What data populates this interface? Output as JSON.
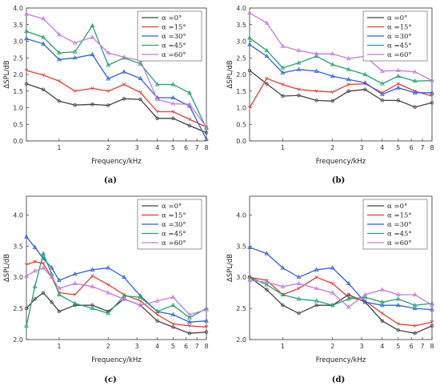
{
  "chart_data": [
    {
      "type": "line",
      "caption": "(a)",
      "xlabel": "Frequency/kHz",
      "ylabel": "ΔSPL/dB",
      "xscale": "log",
      "xlim": [
        0.63,
        8
      ],
      "ylim": [
        0,
        4
      ],
      "xticks": [
        1,
        2,
        3,
        4,
        5,
        6,
        7,
        8
      ],
      "yticks": [
        0.0,
        0.5,
        1.0,
        1.5,
        2.0,
        2.5,
        3.0,
        3.5,
        4.0
      ],
      "ytick_labels": [
        "0.0",
        "0.5",
        "1.0",
        "1.5",
        "2.0",
        "2.5",
        "3.0",
        "3.5",
        "4.0"
      ],
      "legend_position": "top-right",
      "x": [
        0.63,
        0.8,
        1.0,
        1.25,
        1.6,
        2.0,
        2.5,
        3.15,
        4.0,
        5.0,
        6.3,
        8.0
      ],
      "series": [
        {
          "name": "α =0°",
          "color": "#444444",
          "values": [
            1.72,
            1.55,
            1.2,
            1.08,
            1.1,
            1.07,
            1.27,
            1.25,
            0.68,
            0.68,
            0.46,
            0.25
          ]
        },
        {
          "name": "α =15°",
          "color": "#e83a35",
          "values": [
            2.12,
            1.98,
            1.8,
            1.5,
            1.58,
            1.5,
            1.7,
            1.46,
            0.88,
            0.88,
            0.65,
            0.42
          ]
        },
        {
          "name": "α =30°",
          "color": "#2f61d9",
          "values": [
            3.08,
            2.92,
            2.45,
            2.5,
            2.6,
            1.87,
            2.08,
            1.88,
            1.3,
            1.3,
            1.05,
            0.05
          ]
        },
        {
          "name": "α =45°",
          "color": "#1fa472",
          "values": [
            3.3,
            3.12,
            2.65,
            2.68,
            3.47,
            2.28,
            2.5,
            2.32,
            1.7,
            1.7,
            1.45,
            0.38
          ]
        },
        {
          "name": "α =60°",
          "color": "#c27be0",
          "values": [
            3.82,
            3.68,
            3.2,
            2.95,
            3.12,
            2.65,
            2.52,
            2.42,
            1.25,
            1.12,
            1.1,
            0.42
          ]
        }
      ]
    },
    {
      "type": "line",
      "caption": "(b)",
      "xlabel": "Frequency/kHz",
      "ylabel": "ΔSPL/dB",
      "xscale": "log",
      "xlim": [
        0.63,
        8
      ],
      "ylim": [
        0,
        4
      ],
      "xticks": [
        1,
        2,
        3,
        4,
        5,
        6,
        7,
        8
      ],
      "yticks": [
        0.0,
        0.5,
        1.0,
        1.5,
        2.0,
        2.5,
        3.0,
        3.5,
        4.0
      ],
      "ytick_labels": [
        "0.0",
        "0.5",
        "1.0",
        "1.5",
        "2.0",
        "2.5",
        "3.0",
        "3.5",
        "4.0"
      ],
      "legend_position": "top-right",
      "x": [
        0.63,
        0.8,
        1.0,
        1.25,
        1.6,
        2.0,
        2.5,
        3.15,
        4.0,
        5.0,
        6.3,
        8.0
      ],
      "series": [
        {
          "name": "α =0°",
          "color": "#444444",
          "values": [
            2.12,
            1.72,
            1.35,
            1.37,
            1.22,
            1.2,
            1.5,
            1.55,
            1.22,
            1.22,
            1.02,
            1.15
          ]
        },
        {
          "name": "α =15°",
          "color": "#e83a35",
          "values": [
            1.0,
            1.88,
            1.7,
            1.55,
            1.5,
            1.47,
            1.7,
            1.72,
            1.45,
            1.72,
            1.5,
            1.35
          ]
        },
        {
          "name": "α =30°",
          "color": "#2f61d9",
          "values": [
            2.9,
            2.55,
            2.05,
            2.15,
            2.1,
            1.95,
            1.85,
            1.75,
            1.4,
            1.6,
            1.45,
            1.45
          ]
        },
        {
          "name": "α =45°",
          "color": "#1fa472",
          "values": [
            3.1,
            2.72,
            2.2,
            2.35,
            2.55,
            2.3,
            2.15,
            2.0,
            1.72,
            1.95,
            1.8,
            1.82
          ]
        },
        {
          "name": "α =60°",
          "color": "#c27be0",
          "values": [
            3.85,
            3.55,
            2.85,
            2.72,
            2.62,
            2.62,
            2.48,
            2.55,
            2.1,
            2.12,
            2.08,
            1.82
          ]
        }
      ]
    },
    {
      "type": "line",
      "caption": "(c)",
      "xlabel": "Frequency/kHz",
      "ylabel": "ΔSPL/dB",
      "xscale": "log",
      "xlim": [
        0.63,
        8
      ],
      "ylim": [
        2.0,
        4.3
      ],
      "xticks": [
        1,
        2,
        3,
        4,
        5,
        6,
        7,
        8
      ],
      "yticks": [
        2.0,
        2.5,
        3.0,
        3.5,
        4.0
      ],
      "ytick_labels": [
        "2.0",
        "2.5",
        "3.0",
        "3.5",
        "4.0"
      ],
      "legend_position": "top-right",
      "x": [
        0.63,
        0.71,
        0.8,
        0.9,
        1.0,
        1.25,
        1.6,
        2.0,
        2.5,
        3.15,
        4.0,
        5.0,
        6.3,
        8.0
      ],
      "series": [
        {
          "name": "α =0°",
          "color": "#444444",
          "values": [
            2.5,
            2.65,
            2.75,
            2.6,
            2.45,
            2.55,
            2.55,
            2.45,
            2.65,
            2.55,
            2.3,
            2.2,
            2.1,
            2.12
          ]
        },
        {
          "name": "α =15°",
          "color": "#e83a35",
          "values": [
            3.2,
            3.25,
            3.22,
            3.0,
            2.75,
            2.72,
            3.02,
            2.88,
            2.72,
            2.62,
            2.4,
            2.25,
            2.22,
            2.2
          ]
        },
        {
          "name": "α =30°",
          "color": "#2f61d9",
          "values": [
            3.65,
            3.48,
            3.3,
            3.15,
            2.95,
            3.05,
            3.12,
            3.15,
            3.0,
            2.7,
            2.45,
            2.4,
            2.28,
            2.3
          ]
        },
        {
          "name": "α =45°",
          "color": "#1fa472",
          "values": [
            2.22,
            2.85,
            3.38,
            3.05,
            2.72,
            2.58,
            2.5,
            2.42,
            2.7,
            2.68,
            2.45,
            2.55,
            2.35,
            2.5
          ]
        },
        {
          "name": "α =60°",
          "color": "#c27be0",
          "values": [
            3.02,
            3.1,
            3.15,
            3.0,
            2.82,
            2.9,
            2.85,
            2.75,
            2.65,
            2.55,
            2.62,
            2.68,
            2.4,
            2.48
          ]
        }
      ]
    },
    {
      "type": "line",
      "caption": "(d)",
      "xlabel": "Frequency/kHz",
      "ylabel": "ΔSPL/dB",
      "xscale": "log",
      "xlim": [
        0.63,
        8
      ],
      "ylim": [
        2.0,
        4.3
      ],
      "xticks": [
        1,
        2,
        3,
        4,
        5,
        6,
        7,
        8
      ],
      "yticks": [
        2.0,
        2.5,
        3.0,
        3.5,
        4.0
      ],
      "ytick_labels": [
        "2.0",
        "2.5",
        "3.0",
        "3.5",
        "4.0"
      ],
      "legend_position": "top-right",
      "x": [
        0.63,
        0.8,
        1.0,
        1.25,
        1.6,
        2.0,
        2.5,
        3.15,
        4.0,
        5.0,
        6.3,
        8.0
      ],
      "series": [
        {
          "name": "α =0°",
          "color": "#444444",
          "values": [
            3.0,
            2.8,
            2.55,
            2.42,
            2.55,
            2.55,
            2.72,
            2.6,
            2.3,
            2.15,
            2.1,
            2.22
          ]
        },
        {
          "name": "α =15°",
          "color": "#e83a35",
          "values": [
            3.0,
            2.95,
            2.72,
            2.82,
            3.0,
            2.9,
            2.68,
            2.62,
            2.42,
            2.25,
            2.22,
            2.28
          ]
        },
        {
          "name": "α =30°",
          "color": "#2f61d9",
          "values": [
            3.48,
            3.38,
            3.15,
            3.0,
            3.12,
            3.15,
            2.9,
            2.6,
            2.55,
            2.55,
            2.5,
            2.48
          ]
        },
        {
          "name": "α =45°",
          "color": "#1fa472",
          "values": [
            3.0,
            2.88,
            2.72,
            2.65,
            2.62,
            2.55,
            2.65,
            2.68,
            2.6,
            2.65,
            2.55,
            2.58
          ]
        },
        {
          "name": "α =60°",
          "color": "#c27be0",
          "values": [
            2.95,
            2.92,
            2.85,
            2.9,
            2.82,
            2.75,
            2.52,
            2.72,
            2.8,
            2.72,
            2.72,
            2.55
          ]
        }
      ]
    }
  ]
}
